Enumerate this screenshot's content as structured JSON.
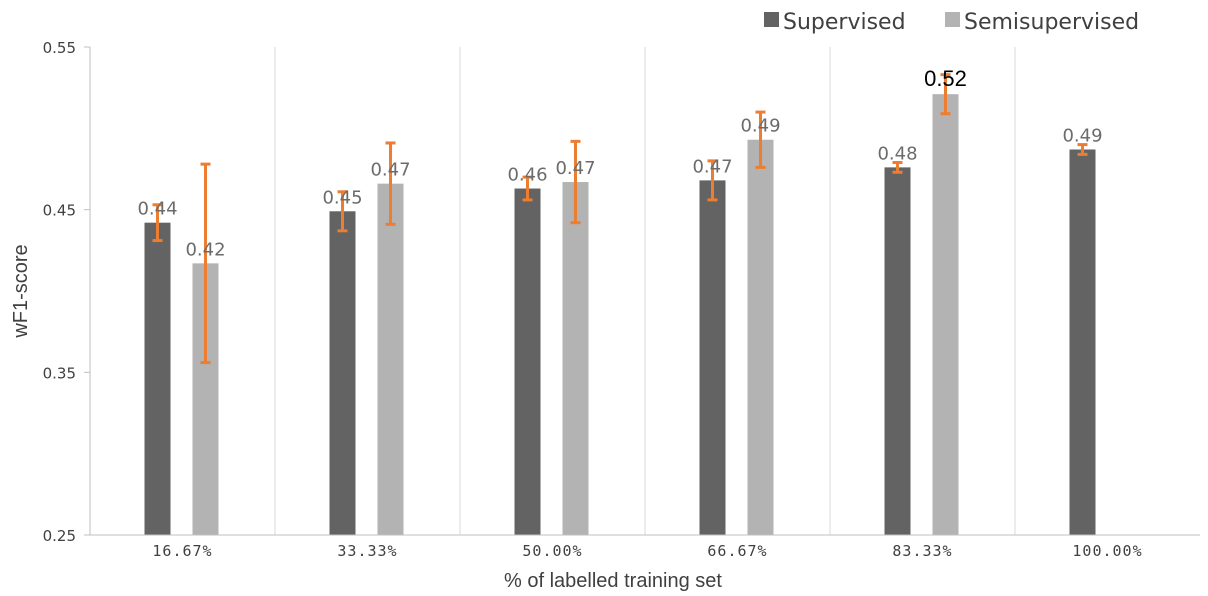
{
  "chart_data": {
    "type": "bar",
    "title": "",
    "xlabel": "% of labelled training set",
    "ylabel": "wF1-score",
    "ylim": [
      0.25,
      0.55
    ],
    "yticks": [
      "0.25",
      "0.35",
      "0.45",
      "0.55"
    ],
    "grid": "vertical category separators",
    "legend_position": "top-right",
    "categories": [
      "16.67%",
      "33.33%",
      "50.00%",
      "66.67%",
      "83.33%",
      "100.00%"
    ],
    "series": [
      {
        "name": "Supervised",
        "color": "#636363",
        "values": [
          0.442,
          0.449,
          0.463,
          0.468,
          0.476,
          0.487
        ],
        "labels": [
          "0.44",
          "0.45",
          "0.46",
          "0.47",
          "0.48",
          "0.49"
        ],
        "error": [
          0.011,
          0.012,
          0.007,
          0.012,
          0.003,
          0.003
        ]
      },
      {
        "name": "Semisupervised",
        "color": "#b3b3b3",
        "values": [
          0.417,
          0.466,
          0.467,
          0.493,
          0.521,
          null
        ],
        "labels": [
          "0.42",
          "0.47",
          "0.47",
          "0.49",
          "0.52",
          ""
        ],
        "error": [
          0.061,
          0.025,
          0.025,
          0.017,
          0.012,
          null
        ]
      }
    ],
    "error_bar_color": "#ed7d31"
  }
}
